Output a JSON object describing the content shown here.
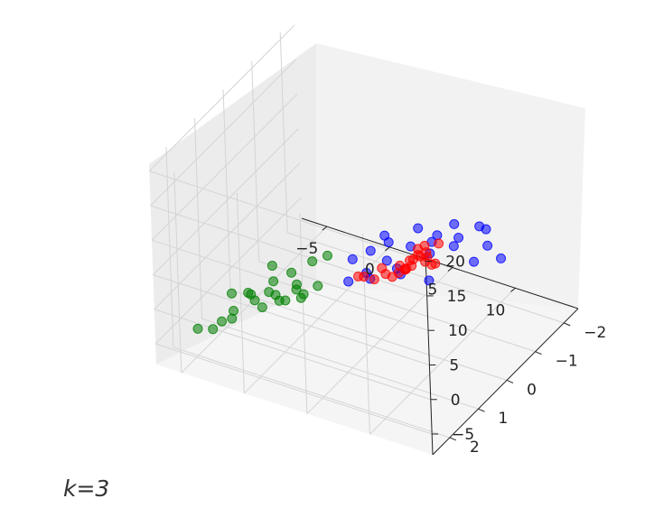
{
  "chart_data": {
    "type": "scatter",
    "projection": "3d",
    "x_ticks": [
      -5,
      0,
      5,
      10
    ],
    "y_ticks": [
      -2,
      -1,
      0,
      1,
      2
    ],
    "z_ticks": [
      -5,
      0,
      5,
      10,
      15,
      20
    ],
    "xlim": [
      -7,
      15
    ],
    "ylim": [
      -2.5,
      2.6
    ],
    "zlim": [
      -8,
      21
    ],
    "grid": true,
    "series": [
      {
        "color": "#008000",
        "points": [
          [
            -3.5,
            1.8,
            -3.0
          ],
          [
            -3.0,
            1.6,
            -2.0
          ],
          [
            -2.5,
            1.2,
            -1.0
          ],
          [
            -2.0,
            0.8,
            -2.0
          ],
          [
            -4.0,
            1.9,
            -4.0
          ],
          [
            -1.5,
            1.5,
            0.0
          ],
          [
            -1.0,
            1.0,
            -1.0
          ],
          [
            -0.5,
            0.5,
            -2.0
          ],
          [
            0.0,
            1.3,
            0.0
          ],
          [
            0.5,
            0.9,
            1.0
          ],
          [
            1.0,
            0.4,
            -1.0
          ],
          [
            1.5,
            1.1,
            1.0
          ],
          [
            -2.8,
            0.3,
            -3.0
          ],
          [
            -1.8,
            0.1,
            -2.0
          ],
          [
            -0.8,
            -0.2,
            -1.0
          ],
          [
            0.2,
            -0.3,
            0.0
          ],
          [
            -3.2,
            1.0,
            -2.0
          ],
          [
            -2.2,
            2.0,
            -1.0
          ],
          [
            -4.5,
            2.2,
            -3.0
          ],
          [
            -0.2,
            1.8,
            1.0
          ],
          [
            1.2,
            1.6,
            2.0
          ],
          [
            2.0,
            1.4,
            2.0
          ],
          [
            -5.0,
            0.8,
            -4.0
          ],
          [
            -3.8,
            -0.1,
            -3.0
          ]
        ]
      },
      {
        "color": "#0000ff",
        "points": [
          [
            1.5,
            -0.6,
            -1.0
          ],
          [
            2.5,
            -0.8,
            0.0
          ],
          [
            3.5,
            -1.0,
            1.0
          ],
          [
            4.5,
            -0.5,
            1.0
          ],
          [
            5.5,
            -0.9,
            2.0
          ],
          [
            6.5,
            -1.2,
            2.0
          ],
          [
            7.5,
            -0.7,
            3.0
          ],
          [
            8.5,
            -1.1,
            3.0
          ],
          [
            3.0,
            0.2,
            0.0
          ],
          [
            4.0,
            0.0,
            1.0
          ],
          [
            5.0,
            0.3,
            2.0
          ],
          [
            6.0,
            -0.2,
            2.0
          ],
          [
            7.0,
            0.1,
            3.0
          ],
          [
            2.0,
            -1.5,
            -1.0
          ],
          [
            4.0,
            -1.8,
            0.0
          ],
          [
            6.0,
            -1.6,
            1.0
          ],
          [
            9.0,
            -2.0,
            2.0
          ],
          [
            10.5,
            -1.4,
            3.0
          ],
          [
            8.0,
            -2.2,
            1.0
          ],
          [
            11.5,
            -0.5,
            5.0
          ],
          [
            9.5,
            0.2,
            4.0
          ],
          [
            12.5,
            -1.0,
            4.0
          ],
          [
            5.5,
            -2.4,
            -1.0
          ],
          [
            7.0,
            -1.9,
            0.0
          ]
        ]
      },
      {
        "color": "#ff0000",
        "points": [
          [
            4.5,
            0.3,
            2.0
          ],
          [
            5.5,
            0.1,
            3.0
          ],
          [
            6.5,
            0.4,
            4.0
          ],
          [
            7.5,
            0.6,
            5.0
          ],
          [
            8.0,
            0.2,
            6.0
          ],
          [
            8.5,
            0.8,
            7.0
          ],
          [
            9.0,
            0.5,
            8.0
          ],
          [
            9.5,
            1.0,
            9.0
          ],
          [
            10.0,
            1.2,
            10.0
          ],
          [
            10.5,
            0.9,
            11.0
          ],
          [
            11.0,
            1.4,
            12.0
          ],
          [
            11.5,
            1.1,
            13.0
          ],
          [
            12.0,
            1.6,
            15.0
          ],
          [
            12.5,
            1.8,
            17.0
          ],
          [
            14.0,
            2.2,
            20.0
          ],
          [
            6.0,
            -0.3,
            2.0
          ],
          [
            7.0,
            -0.1,
            3.0
          ],
          [
            8.0,
            -0.4,
            4.0
          ],
          [
            9.0,
            0.1,
            6.0
          ],
          [
            10.0,
            0.3,
            7.0
          ],
          [
            5.0,
            0.7,
            4.0
          ],
          [
            7.0,
            1.0,
            6.0
          ],
          [
            11.0,
            0.6,
            9.0
          ],
          [
            13.0,
            1.3,
            16.0
          ]
        ]
      }
    ]
  },
  "caption": "k=3"
}
